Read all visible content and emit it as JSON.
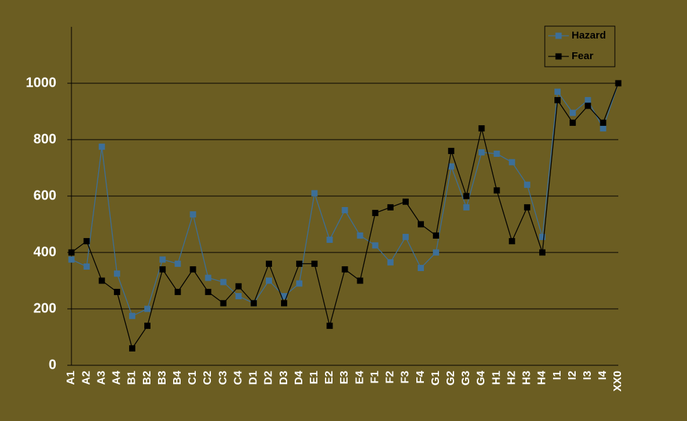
{
  "chart_data": {
    "type": "line",
    "categories": [
      "A1",
      "A2",
      "A3",
      "A4",
      "B1",
      "B2",
      "B3",
      "B4",
      "C1",
      "C2",
      "C3",
      "C4",
      "D1",
      "D2",
      "D3",
      "D4",
      "E1",
      "E2",
      "E3",
      "E4",
      "F1",
      "F2",
      "F3",
      "F4",
      "G1",
      "G2",
      "G3",
      "G4",
      "H1",
      "H2",
      "H3",
      "H4",
      "I1",
      "I2",
      "I3",
      "I4",
      "XX0"
    ],
    "series": [
      {
        "name": "Hazard",
        "color": "#3d6f98",
        "values": [
          375,
          350,
          775,
          325,
          175,
          200,
          375,
          360,
          535,
          310,
          295,
          245,
          220,
          300,
          245,
          290,
          610,
          445,
          550,
          460,
          425,
          365,
          455,
          345,
          400,
          705,
          560,
          755,
          750,
          720,
          640,
          455,
          970,
          895,
          940,
          840,
          1000
        ]
      },
      {
        "name": "Fear",
        "color": "#000000",
        "values": [
          400,
          440,
          300,
          260,
          60,
          140,
          340,
          260,
          340,
          260,
          220,
          280,
          220,
          360,
          220,
          360,
          360,
          140,
          340,
          300,
          540,
          560,
          580,
          500,
          460,
          760,
          600,
          840,
          620,
          440,
          560,
          400,
          940,
          860,
          920,
          860,
          1000
        ]
      }
    ],
    "ylim": [
      0,
      1200
    ],
    "yticks": [
      0,
      200,
      400,
      600,
      800,
      1000
    ],
    "grid": true,
    "legend": "top-right"
  }
}
